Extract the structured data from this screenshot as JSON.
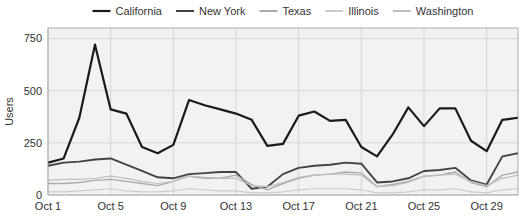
{
  "chart_data": {
    "type": "line",
    "ylabel": "Users",
    "x": [
      1,
      2,
      3,
      4,
      5,
      6,
      7,
      8,
      9,
      10,
      11,
      12,
      13,
      14,
      15,
      16,
      17,
      18,
      19,
      20,
      21,
      22,
      23,
      24,
      25,
      26,
      27,
      28,
      29,
      30,
      31
    ],
    "xlim": [
      1,
      31
    ],
    "xticks": [
      {
        "value": 1,
        "label": "Oct 1"
      },
      {
        "value": 5,
        "label": "Oct 5"
      },
      {
        "value": 9,
        "label": "Oct 9"
      },
      {
        "value": 13,
        "label": "Oct 13"
      },
      {
        "value": 17,
        "label": "Oct 17"
      },
      {
        "value": 21,
        "label": "Oct 21"
      },
      {
        "value": 25,
        "label": "Oct 25"
      },
      {
        "value": 29,
        "label": "Oct 29"
      }
    ],
    "ylim": [
      0,
      800
    ],
    "yticks": [
      0,
      250,
      500,
      750
    ],
    "grid": true,
    "legend": "top",
    "series": [
      {
        "name": "California",
        "color": "#1a1a1a",
        "values": [
          155,
          175,
          370,
          720,
          410,
          390,
          230,
          200,
          240,
          455,
          430,
          410,
          390,
          360,
          235,
          245,
          380,
          400,
          355,
          360,
          230,
          185,
          290,
          420,
          330,
          415,
          415,
          260,
          210,
          360,
          370
        ]
      },
      {
        "name": "New York",
        "color": "#444444",
        "values": [
          140,
          155,
          160,
          170,
          175,
          145,
          115,
          85,
          80,
          100,
          105,
          110,
          110,
          30,
          40,
          100,
          130,
          140,
          145,
          155,
          150,
          60,
          65,
          80,
          115,
          120,
          130,
          70,
          50,
          185,
          200
        ]
      },
      {
        "name": "Texas",
        "color": "#aaaaaa",
        "values": [
          55,
          55,
          60,
          70,
          75,
          65,
          55,
          45,
          65,
          90,
          80,
          80,
          95,
          50,
          25,
          55,
          80,
          95,
          100,
          110,
          105,
          40,
          50,
          65,
          90,
          95,
          110,
          60,
          40,
          95,
          110
        ]
      },
      {
        "name": "Illinois",
        "color": "#cccccc",
        "values": [
          15,
          15,
          20,
          25,
          30,
          20,
          15,
          15,
          20,
          30,
          25,
          20,
          20,
          10,
          10,
          15,
          25,
          30,
          30,
          30,
          25,
          10,
          10,
          15,
          25,
          25,
          30,
          15,
          10,
          25,
          30
        ]
      },
      {
        "name": "Washington",
        "color": "#c0c0c0",
        "values": [
          70,
          75,
          75,
          80,
          90,
          80,
          65,
          55,
          65,
          90,
          85,
          80,
          80,
          45,
          40,
          60,
          85,
          95,
          100,
          100,
          95,
          40,
          45,
          60,
          90,
          95,
          100,
          65,
          45,
          80,
          95
        ]
      }
    ]
  }
}
